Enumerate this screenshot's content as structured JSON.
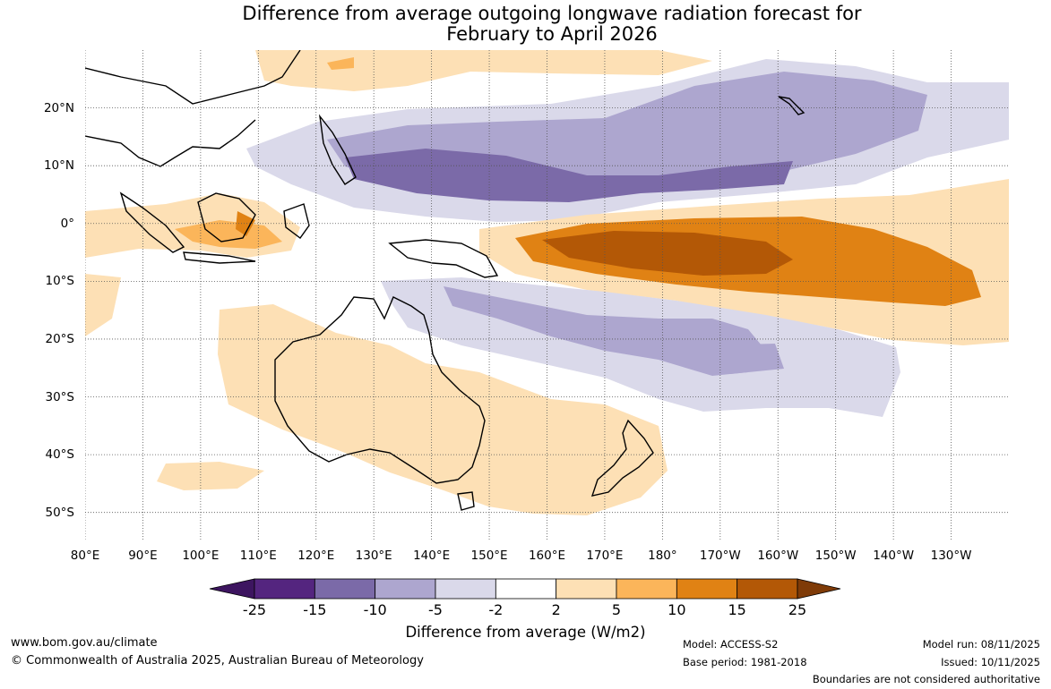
{
  "title": {
    "line1": "Difference from average outgoing longwave radiation forecast for",
    "line2": "February to April 2026"
  },
  "map": {
    "lon_range": [
      80,
      240
    ],
    "lat_range": [
      -55,
      30
    ],
    "lon_ticks": [
      {
        "lon": 80,
        "label": "80°E"
      },
      {
        "lon": 90,
        "label": "90°E"
      },
      {
        "lon": 100,
        "label": "100°E"
      },
      {
        "lon": 110,
        "label": "110°E"
      },
      {
        "lon": 120,
        "label": "120°E"
      },
      {
        "lon": 130,
        "label": "130°E"
      },
      {
        "lon": 140,
        "label": "140°E"
      },
      {
        "lon": 150,
        "label": "150°E"
      },
      {
        "lon": 160,
        "label": "160°E"
      },
      {
        "lon": 170,
        "label": "170°E"
      },
      {
        "lon": 180,
        "label": "180°"
      },
      {
        "lon": 190,
        "label": "170°W"
      },
      {
        "lon": 200,
        "label": "160°W"
      },
      {
        "lon": 210,
        "label": "150°W"
      },
      {
        "lon": 220,
        "label": "140°W"
      },
      {
        "lon": 230,
        "label": "130°W"
      }
    ],
    "lat_ticks": [
      {
        "lat": 20,
        "label": "20°N"
      },
      {
        "lat": 10,
        "label": "10°N"
      },
      {
        "lat": 0,
        "label": "0°"
      },
      {
        "lat": -10,
        "label": "10°S"
      },
      {
        "lat": -20,
        "label": "20°S"
      },
      {
        "lat": -30,
        "label": "30°S"
      },
      {
        "lat": -40,
        "label": "40°S"
      },
      {
        "lat": -50,
        "label": "50°S"
      }
    ]
  },
  "colorbar": {
    "label": "Difference from average (W/m2)",
    "colors": [
      "#3d1560",
      "#54257f",
      "#7b6aa8",
      "#ada6cf",
      "#dad9ea",
      "#ffffff",
      "#fde0b5",
      "#fbb55a",
      "#e08214",
      "#b35806",
      "#7f3b08"
    ],
    "tick_labels": [
      "-25",
      "-15",
      "-10",
      "-5",
      "-2",
      "2",
      "5",
      "10",
      "15",
      "25"
    ]
  },
  "footer": {
    "website": "www.bom.gov.au/climate",
    "copyright": "© Commonwealth of Australia 2025, Australian Bureau of Meteorology",
    "model": "Model: ACCESS-S2",
    "base_period": "Base period: 1981-2018",
    "model_run": "Model run: 08/11/2025",
    "issued": "Issued: 10/11/2025",
    "disclaimer": "Boundaries are not considered authoritative"
  }
}
